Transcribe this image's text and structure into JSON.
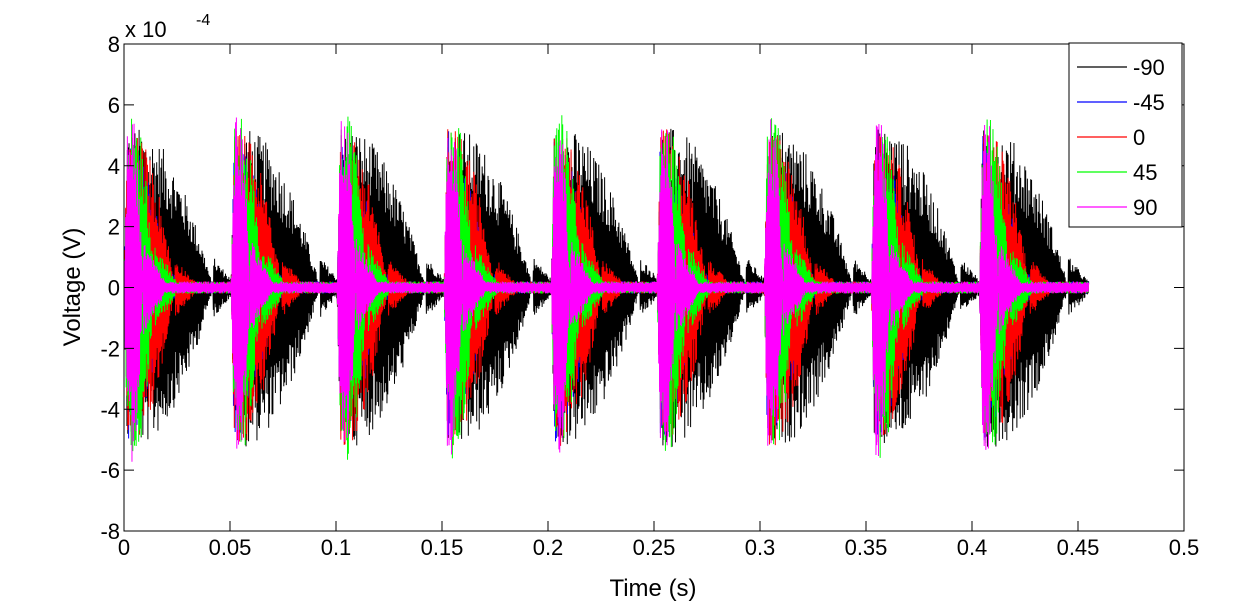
{
  "chart_data": {
    "type": "line",
    "title": "",
    "xlabel": "Time (s)",
    "ylabel": "Voltage (V)",
    "y_multiplier": "x 10",
    "y_exponent": "-4",
    "xlim": [
      0,
      0.5
    ],
    "ylim": [
      -8,
      8
    ],
    "x_ticks": [
      0,
      0.05,
      0.1,
      0.15,
      0.2,
      0.25,
      0.3,
      0.35,
      0.4,
      0.45,
      0.5
    ],
    "x_tick_labels": [
      "0",
      "0.05",
      "0.1",
      "0.15",
      "0.2",
      "0.25",
      "0.3",
      "0.35",
      "0.4",
      "0.45",
      "0.5"
    ],
    "y_ticks": [
      -8,
      -6,
      -4,
      -2,
      0,
      2,
      4,
      6,
      8
    ],
    "y_tick_labels": [
      "-8",
      "-6",
      "-4",
      "-2",
      "0",
      "2",
      "4",
      "6",
      "8"
    ],
    "grid": false,
    "legend_position": "top-right",
    "signal": {
      "duration_s": 0.455,
      "burst_onsets_s": [
        0.0,
        0.0505,
        0.1005,
        0.151,
        0.2015,
        0.2515,
        0.302,
        0.3525,
        0.4035
      ],
      "burst_peak_amplitude": 5.2,
      "noise_floor_amplitude": 0.2
    },
    "series": [
      {
        "name": "-90",
        "color": "#000000",
        "decay_duration_s": 0.042,
        "mid_amplitude": 2.9
      },
      {
        "name": "-45",
        "color": "#0000ff",
        "decay_duration_s": 0.022,
        "mid_amplitude": 1.5
      },
      {
        "name": "0",
        "color": "#ff0000",
        "decay_duration_s": 0.024,
        "mid_amplitude": 2.8
      },
      {
        "name": "45",
        "color": "#00ff00",
        "decay_duration_s": 0.0145,
        "mid_amplitude": 4.3
      },
      {
        "name": "90",
        "color": "#ff00ff",
        "decay_duration_s": 0.009,
        "mid_amplitude": 4.6
      }
    ]
  }
}
